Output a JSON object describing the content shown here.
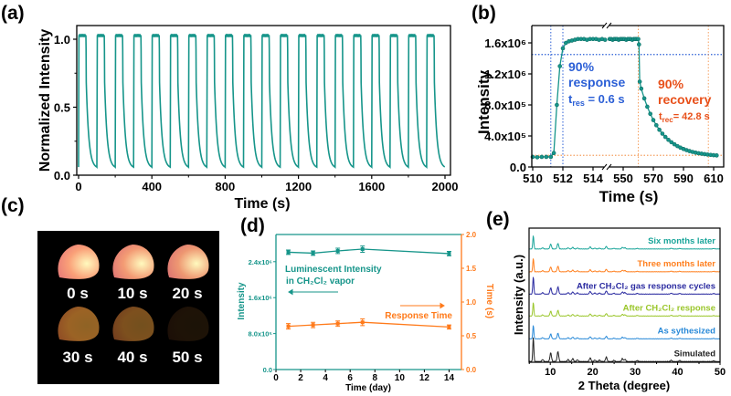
{
  "panel_labels": {
    "a": "(a)",
    "b": "(b)",
    "c": "(c)",
    "d": "(d)",
    "e": "(e)"
  },
  "colors": {
    "teal": "#16958a",
    "orange": "#ff7a1a",
    "blue": "#2b5fd6",
    "ref_orange": "#f5a060",
    "axis": "#000000"
  },
  "chart_data": [
    {
      "id": "a",
      "type": "line",
      "xlabel": "Time (s)",
      "ylabel": "Normalized Intensity",
      "xlim": [
        0,
        2000
      ],
      "ylim": [
        0,
        1.1
      ],
      "xticks": [
        "0",
        "400",
        "800",
        "1200",
        "1600",
        "2000"
      ],
      "yticks": [
        "0.0",
        "0.5",
        "1.0"
      ],
      "cycles": 20,
      "period_s": 100,
      "on_duration_s": 40,
      "max": 1.03,
      "min": 0.05,
      "grid": false
    },
    {
      "id": "b",
      "type": "scatter",
      "xlabel": "Time (s)",
      "ylabel": "Intensity",
      "ylim": [
        0,
        1800000.0
      ],
      "axis_break": [
        515,
        540
      ],
      "xticks": [
        "510",
        "512",
        "514",
        "550",
        "570",
        "590",
        "610"
      ],
      "yticks": [
        "0.0",
        "4.0x10⁵",
        "8.0x10⁵",
        "1.2x10⁶",
        "1.6x10⁶"
      ],
      "x": [
        510,
        510.3,
        510.6,
        510.9,
        511.2,
        511.4,
        511.6,
        511.8,
        512,
        512.2,
        512.4,
        512.6,
        512.8,
        513,
        513.2,
        513.4,
        513.6,
        513.8,
        514,
        514.2,
        514.4,
        514.6,
        514.8,
        541,
        542,
        543,
        544,
        545,
        546,
        547,
        548,
        549,
        550,
        551,
        552,
        553,
        554,
        555,
        556,
        557,
        558,
        559,
        560,
        560.5,
        561,
        562,
        564,
        566,
        568,
        570,
        572,
        574,
        576,
        578,
        580,
        582,
        584,
        586,
        588,
        590,
        592,
        594,
        596,
        598,
        600,
        602,
        604,
        606,
        608,
        610,
        612
      ],
      "y": [
        130000.0,
        125000.0,
        130000.0,
        130000.0,
        130000.0,
        180000.0,
        800000.0,
        1300000.0,
        1530000.0,
        1600000.0,
        1620000.0,
        1630000.0,
        1640000.0,
        1650000.0,
        1650000.0,
        1650000.0,
        1640000.0,
        1650000.0,
        1650000.0,
        1650000.0,
        1640000.0,
        1650000.0,
        1640000.0,
        1650000.0,
        1650000.0,
        1640000.0,
        1650000.0,
        1650000.0,
        1650000.0,
        1640000.0,
        1650000.0,
        1650000.0,
        1650000.0,
        1650000.0,
        1640000.0,
        1650000.0,
        1650000.0,
        1650000.0,
        1640000.0,
        1650000.0,
        1650000.0,
        1650000.0,
        1650000.0,
        1580000.0,
        1100000.0,
        1010000.0,
        884000.0,
        777000.0,
        685000.0,
        605000.0,
        538000.0,
        480000.0,
        429000.0,
        387000.0,
        350000.0,
        319000.0,
        292000.0,
        269000.0,
        249000.0,
        232000.0,
        217000.0,
        205000.0,
        194000.0,
        185000.0,
        177000.0,
        171000.0,
        165000.0,
        160000.0,
        156000.0,
        152000.0,
        149000.0
      ],
      "ref_lines": {
        "blue_x": [
          511.2,
          512
        ],
        "blue_y": 1450000.0,
        "orange_x": [
          560,
          606.5
        ],
        "orange_y": 150000.0
      },
      "annotations": {
        "response": {
          "pct": "90%",
          "label": "response",
          "t_main": "t",
          "t_sub": "res",
          "t_rest": " = 0.6 s"
        },
        "recovery": {
          "pct": "90%",
          "label": "recovery",
          "t_main": "t",
          "t_sub": "rec",
          "t_rest": "= 42.8 s"
        }
      }
    },
    {
      "id": "c",
      "type": "image",
      "frames": [
        {
          "label": "0 s",
          "brightness": 1.0
        },
        {
          "label": "10 s",
          "brightness": 0.97
        },
        {
          "label": "20 s",
          "brightness": 0.95
        },
        {
          "label": "30 s",
          "brightness": 0.62
        },
        {
          "label": "40 s",
          "brightness": 0.5
        },
        {
          "label": "50 s",
          "brightness": 0.12
        }
      ]
    },
    {
      "id": "d",
      "type": "line",
      "xlabel": "Time (day)",
      "ylabel": "Intensity",
      "y2label": "Time (s)",
      "xlim": [
        0,
        15
      ],
      "ylim": [
        0,
        3020000.0
      ],
      "y2lim": [
        0,
        2.0
      ],
      "xticks": [
        "0",
        "2",
        "4",
        "6",
        "8",
        "10",
        "12",
        "14"
      ],
      "yticks": [
        "0.0",
        "8.0x10⁵",
        "1.6x10⁶",
        "2.4x10⁶"
      ],
      "y2ticks": [
        "0.0",
        "0.5",
        "1.0",
        "1.5",
        "2.0"
      ],
      "x": [
        1,
        3,
        5,
        7,
        14
      ],
      "series": [
        {
          "name": "Luminescent Intensity in CH₂Cl₂ vapor",
          "axis": "left",
          "values": [
            2610000.0,
            2590000.0,
            2640000.0,
            2680000.0,
            2580000.0
          ],
          "errors": [
            50000.0,
            50000.0,
            60000.0,
            70000.0,
            50000.0
          ]
        },
        {
          "name": "Response Time",
          "axis": "right",
          "values": [
            0.64,
            0.66,
            0.68,
            0.7,
            0.63
          ],
          "errors": [
            0.04,
            0.04,
            0.04,
            0.05,
            0.03
          ]
        }
      ],
      "legend_labels": {
        "intensity_line1": "Luminescent Intensity",
        "intensity_line2": "in CH₂Cl₂ vapor",
        "response": "Response Time"
      }
    },
    {
      "id": "e",
      "type": "line",
      "xlabel": "2 Theta (degree)",
      "ylabel": "Intensity (a.u.)",
      "xlim": [
        5,
        50
      ],
      "xticks": [
        "10",
        "20",
        "30",
        "40",
        "50"
      ],
      "peaks_2theta": [
        6.0,
        8.2,
        10.1,
        11.8,
        14.2,
        15.3,
        16.4,
        19.4,
        20.5,
        21.6,
        23.2,
        25.0,
        27.0,
        27.6,
        30.5,
        38.5,
        40.5,
        48.5
      ],
      "peak_rel_intensity": [
        1.0,
        0.08,
        0.35,
        0.4,
        0.08,
        0.12,
        0.07,
        0.15,
        0.06,
        0.06,
        0.18,
        0.05,
        0.12,
        0.09,
        0.04,
        0.05,
        0.04,
        0.03
      ],
      "series": [
        {
          "name": "Simulated",
          "color": "#222222",
          "scale": 1.25
        },
        {
          "name": "As sythesized",
          "color": "#2a8ad8",
          "scale": 0.7
        },
        {
          "name": "After CH₂Cl₂ response",
          "color": "#9ac62a",
          "scale": 0.7
        },
        {
          "name": "After CH₂Cl₂ gas response cycles",
          "color": "#2a2aa0",
          "scale": 0.9
        },
        {
          "name": "Three months later",
          "color": "#ff7f1e",
          "scale": 0.7
        },
        {
          "name": "Six months later",
          "color": "#1aa59a",
          "scale": 0.7
        }
      ]
    }
  ]
}
